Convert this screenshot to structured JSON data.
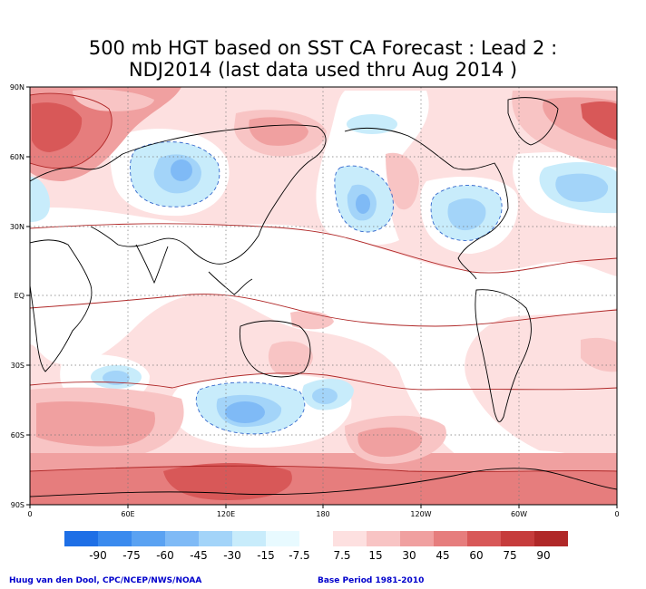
{
  "title": {
    "line1": "500 mb HGT based on SST CA Forecast : Lead 2 :",
    "line2": "NDJ2014 (last data used thru Aug 2014 )"
  },
  "axes": {
    "y_ticks": [
      "90N",
      "60N",
      "30N",
      "EQ",
      "30S",
      "60S",
      "90S"
    ],
    "x_ticks": [
      "0",
      "60E",
      "120E",
      "180",
      "120W",
      "60W",
      "0"
    ]
  },
  "legend": {
    "labels": [
      "-90",
      "-75",
      "-60",
      "-45",
      "-30",
      "-15",
      "-7.5",
      "7.5",
      "15",
      "30",
      "45",
      "60",
      "75",
      "90"
    ],
    "colors": [
      "#1e6fe6",
      "#3a8aee",
      "#5aa2f2",
      "#7fbaf6",
      "#a3d4f9",
      "#c8ecfb",
      "#e8faff",
      "#ffffff",
      "#fde0e0",
      "#f8c4c4",
      "#f0a0a0",
      "#e67d7d",
      "#d85858",
      "#c63c3c",
      "#b02828"
    ]
  },
  "credits": {
    "left": "Huug van den Dool, CPC/NCEP/NWS/NOAA",
    "right": "Base Period 1981-2010"
  }
}
